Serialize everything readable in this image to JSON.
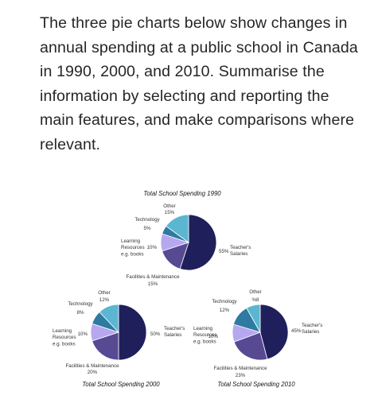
{
  "prompt_text": "The three pie charts below show changes in annual spending at a public school in Canada in 1990, 2000, and 2010.  Summarise the information by selecting and reporting the main features, and make comparisons where relevant.",
  "colors": {
    "teachers_salaries": "#1f1f5c",
    "facilities_maintenance": "#574a93",
    "learning_resources": "#b6a7f0",
    "technology": "#2f7aa0",
    "other": "#5bb6d2"
  },
  "chart_data": [
    {
      "type": "pie",
      "title": "Total School Spending 1990",
      "slices": [
        {
          "label": "Teacher's Salaries",
          "value": 55,
          "value_label": "55%"
        },
        {
          "label": "Facilities & Maintenance",
          "value": 15,
          "value_label": "15%"
        },
        {
          "label": "Learning Resources e.g. books",
          "value": 10,
          "value_label": "10%"
        },
        {
          "label": "Technology",
          "value": 5,
          "value_label": "5%"
        },
        {
          "label": "Other",
          "value": 15,
          "value_label": "15%"
        }
      ]
    },
    {
      "type": "pie",
      "title": "Total School Spending 2000",
      "slices": [
        {
          "label": "Teacher's Salaries",
          "value": 50,
          "value_label": "50%"
        },
        {
          "label": "Facilities & Maintenance",
          "value": 20,
          "value_label": "20%"
        },
        {
          "label": "Learning Resources e.g. books",
          "value": 10,
          "value_label": "10%"
        },
        {
          "label": "Technology",
          "value": 8,
          "value_label": "8%"
        },
        {
          "label": "Other",
          "value": 12,
          "value_label": "12%"
        }
      ]
    },
    {
      "type": "pie",
      "title": "Total School Spending 2010",
      "slices": [
        {
          "label": "Teacher's Salaries",
          "value": 45,
          "value_label": "45%"
        },
        {
          "label": "Facilities & Maintenance",
          "value": 23,
          "value_label": "23%"
        },
        {
          "label": "Learning Resources e.g. books",
          "value": 10,
          "value_label": "10%"
        },
        {
          "label": "Technology",
          "value": 12,
          "value_label": "12%"
        },
        {
          "label": "Other",
          "value": 8,
          "value_label": "%8"
        }
      ]
    }
  ]
}
